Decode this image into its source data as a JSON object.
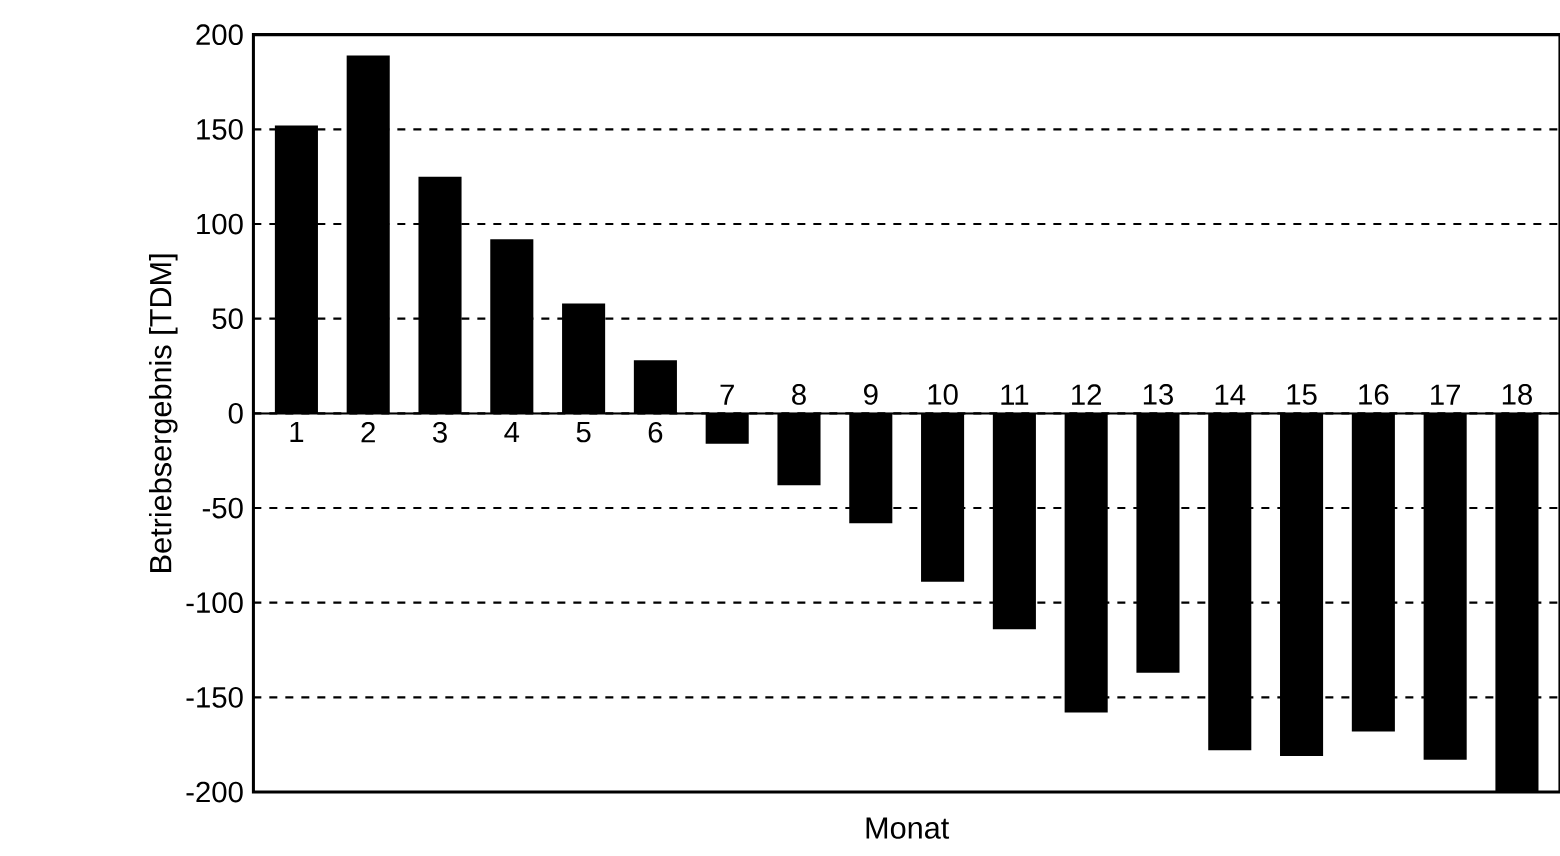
{
  "chart_data": {
    "type": "bar",
    "xlabel": "Monat",
    "ylabel": "Betriebsergebnis [TDM]",
    "categories": [
      "1",
      "2",
      "3",
      "4",
      "5",
      "6",
      "7",
      "8",
      "9",
      "10",
      "11",
      "12",
      "13",
      "14",
      "15",
      "16",
      "17",
      "18"
    ],
    "values": [
      152,
      189,
      125,
      92,
      58,
      28,
      -16,
      -38,
      -58,
      -89,
      -114,
      -158,
      -137,
      -178,
      -181,
      -168,
      -183,
      -200
    ],
    "color": "#000000",
    "ylim": [
      -200,
      200
    ],
    "yticks": [
      -200,
      -150,
      -100,
      -50,
      0,
      50,
      100,
      150,
      200
    ],
    "grid": "y"
  }
}
